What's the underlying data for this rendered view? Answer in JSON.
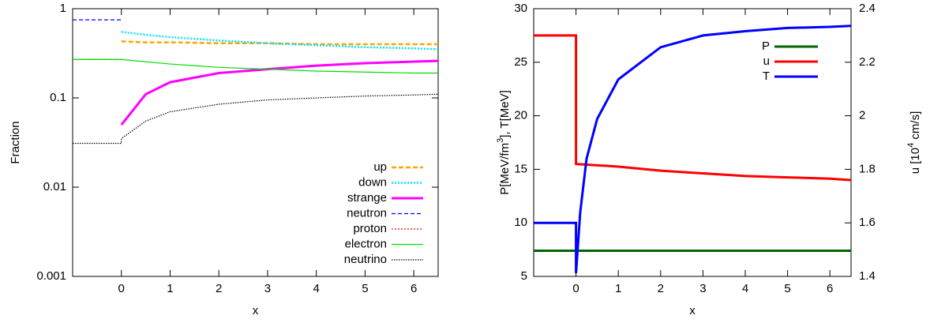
{
  "chart_data": [
    {
      "type": "line",
      "xlabel": "x",
      "ylabel": "Fraction",
      "log_y": true,
      "legend": "lower right",
      "xlim": [
        -1,
        6.5
      ],
      "xticks": [
        0,
        1,
        2,
        3,
        4,
        5,
        6
      ],
      "ylim": [
        0.001,
        1
      ],
      "yticks": [
        0.001,
        0.01,
        0.1,
        1
      ],
      "series": [
        {
          "name": "up",
          "color": "#ffa500",
          "dash": "6,3",
          "width": 2.5,
          "x": [
            0,
            0.5,
            1,
            2,
            3,
            4,
            5,
            6,
            6.5
          ],
          "values": [
            0.43,
            0.42,
            0.42,
            0.41,
            0.41,
            0.4,
            0.4,
            0.4,
            0.4
          ]
        },
        {
          "name": "down",
          "color": "#00e5ff",
          "dash": "2,2",
          "width": 2.5,
          "x": [
            0,
            0.5,
            1,
            2,
            3,
            4,
            5,
            6,
            6.5
          ],
          "values": [
            0.55,
            0.51,
            0.48,
            0.44,
            0.41,
            0.39,
            0.37,
            0.36,
            0.35
          ]
        },
        {
          "name": "strange",
          "color": "#ff00ff",
          "dash": "",
          "width": 3,
          "x": [
            0,
            0.5,
            1,
            2,
            3,
            4,
            5,
            6,
            6.5
          ],
          "values": [
            0.05,
            0.11,
            0.15,
            0.19,
            0.21,
            0.23,
            0.245,
            0.255,
            0.26
          ]
        },
        {
          "name": "neutron",
          "color": "#0000ff",
          "dash": "5,3",
          "width": 1.2,
          "x": [
            -1,
            0
          ],
          "values": [
            0.75,
            0.75
          ]
        },
        {
          "name": "proton",
          "color": "#ff0000",
          "dash": "2,2",
          "width": 1.2,
          "x": [
            -1,
            0
          ],
          "values": [
            0.27,
            0.27
          ]
        },
        {
          "name": "electron",
          "color": "#00dd00",
          "dash": "",
          "width": 1.2,
          "x": [
            -1,
            0,
            1,
            2,
            3,
            4,
            5,
            6,
            6.5
          ],
          "values": [
            0.27,
            0.27,
            0.24,
            0.22,
            0.21,
            0.2,
            0.195,
            0.19,
            0.19
          ]
        },
        {
          "name": "neutrino",
          "color": "#000000",
          "dash": "1.5,1.5",
          "width": 1.2,
          "x": [
            -1,
            0,
            0,
            0.5,
            1,
            2,
            3,
            4,
            5,
            6,
            6.5
          ],
          "values": [
            0.031,
            0.031,
            0.035,
            0.055,
            0.07,
            0.085,
            0.095,
            0.1,
            0.105,
            0.108,
            0.11
          ]
        }
      ]
    },
    {
      "type": "line",
      "xlabel": "x",
      "ylabel": {
        "text": "P[MeV/fm",
        "sup": "3",
        "tail": "],    T[MeV]"
      },
      "y2label": {
        "text": "u [10",
        "sup": "4",
        "tail": " cm/s]"
      },
      "legend": "upper right",
      "xlim": [
        -1,
        6.5
      ],
      "xticks": [
        0,
        1,
        2,
        3,
        4,
        5,
        6
      ],
      "ylim": [
        5,
        30
      ],
      "yticks": [
        5,
        10,
        15,
        20,
        25,
        30
      ],
      "y2lim": [
        1.4,
        2.4
      ],
      "y2ticks": [
        1.4,
        1.6,
        1.8,
        2,
        2.2,
        2.4
      ],
      "series": [
        {
          "name": "P",
          "color": "#006400",
          "dash": "",
          "width": 3,
          "x": [
            -1,
            6.5
          ],
          "values": [
            7.4,
            7.4
          ]
        },
        {
          "name": "u",
          "color": "#ff0000",
          "dash": "",
          "width": 3,
          "axis": "y2",
          "x": [
            -1,
            0,
            0,
            1,
            2,
            3,
            4,
            5,
            6,
            6.5
          ],
          "values": [
            2.3,
            2.3,
            1.82,
            1.81,
            1.795,
            1.785,
            1.775,
            1.77,
            1.765,
            1.76
          ]
        },
        {
          "name": "T",
          "color": "#0000ff",
          "dash": "",
          "width": 3,
          "x": [
            -1,
            0,
            0,
            0.1,
            0.25,
            0.5,
            1,
            2,
            3,
            4,
            5,
            6,
            6.5
          ],
          "values": [
            10,
            10,
            5.3,
            11,
            16,
            19.7,
            23.4,
            26.4,
            27.5,
            27.9,
            28.2,
            28.3,
            28.4
          ]
        }
      ]
    }
  ]
}
